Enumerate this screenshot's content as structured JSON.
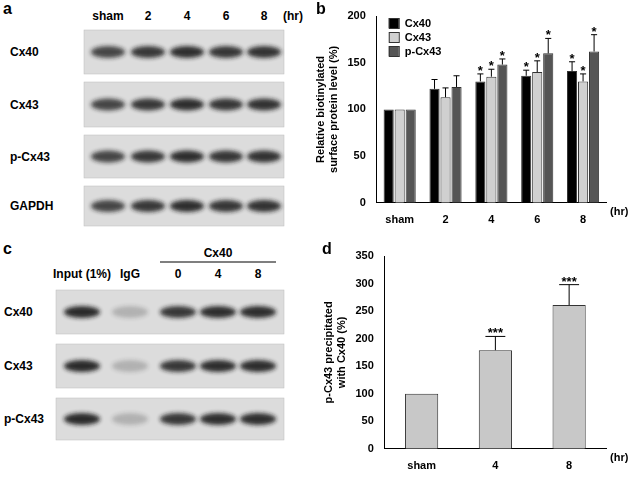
{
  "chart_data": [
    {
      "panel": "b",
      "type": "bar",
      "categories": [
        "sham",
        "2",
        "4",
        "6",
        "8"
      ],
      "x_label": "(hr)",
      "y_label": [
        "Relative biotinylated",
        "surface protein level (%)"
      ],
      "series": [
        {
          "name": "Cx40",
          "color": "#000000",
          "values": [
            100,
            122,
            130,
            136,
            141
          ],
          "errors": [
            0,
            10,
            8,
            6,
            10
          ],
          "significance": [
            null,
            null,
            "*",
            "*",
            "*"
          ]
        },
        {
          "name": "Cx43",
          "color": "#d0d0d0",
          "values": [
            100,
            113,
            135,
            140,
            130
          ],
          "errors": [
            0,
            10,
            8,
            12,
            8
          ],
          "significance": [
            null,
            null,
            "*",
            "*",
            "*"
          ]
        },
        {
          "name": "p-Cx43",
          "color": "#555555",
          "values": [
            100,
            124,
            148,
            160,
            162
          ],
          "errors": [
            0,
            12,
            6,
            16,
            18
          ],
          "significance": [
            null,
            null,
            "*",
            "*",
            "*"
          ]
        }
      ],
      "ylim": [
        0,
        200
      ],
      "yticks": [
        0,
        50,
        100,
        150,
        200
      ],
      "grid": false,
      "legend": "upper left"
    },
    {
      "panel": "d",
      "type": "bar",
      "categories": [
        "sham",
        "4",
        "8"
      ],
      "x_label": "(hr)",
      "y_label": [
        "p-Cx43 precipitated",
        "with Cx40 (%)"
      ],
      "values": [
        100,
        179,
        261
      ],
      "errors": [
        0,
        25,
        37
      ],
      "significance": [
        null,
        "***",
        "***"
      ],
      "color": "#c8c8c8",
      "ylim": [
        0,
        350
      ],
      "yticks": [
        0,
        50,
        100,
        150,
        200,
        250,
        300,
        350
      ],
      "grid": false
    }
  ],
  "blots": [
    {
      "panel": "a",
      "unit": "(hr)",
      "lanes": [
        {
          "label": "sham"
        },
        {
          "label": "2"
        },
        {
          "label": "4"
        },
        {
          "label": "6"
        },
        {
          "label": "8"
        }
      ],
      "rows": [
        "Cx40",
        "Cx43",
        "p-Cx43",
        "GAPDH"
      ]
    },
    {
      "panel": "c",
      "lanes": [
        {
          "label": "Input (1%)"
        },
        {
          "label": "IgG"
        },
        {
          "label": "0",
          "group": "Cx40"
        },
        {
          "label": "4",
          "group": "Cx40"
        },
        {
          "label": "8",
          "group": "Cx40"
        }
      ],
      "rows": [
        "Cx40",
        "Cx43",
        "p-Cx43"
      ]
    }
  ]
}
